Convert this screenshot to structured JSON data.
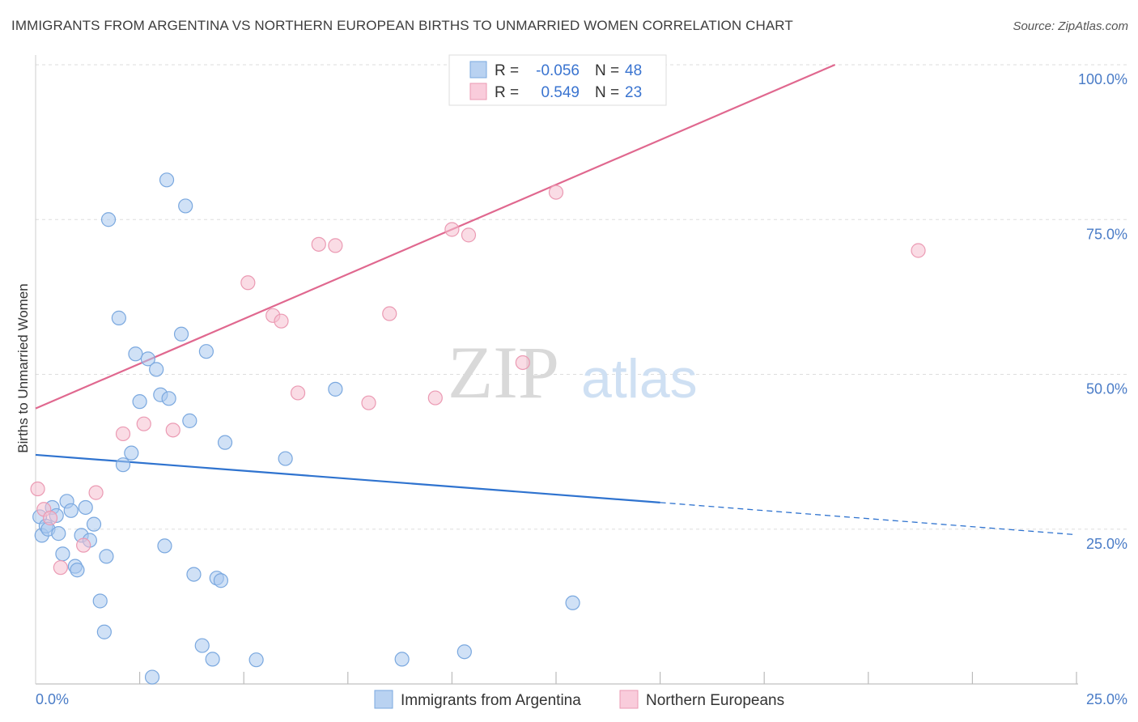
{
  "title": "IMMIGRANTS FROM ARGENTINA VS NORTHERN EUROPEAN BIRTHS TO UNMARRIED WOMEN CORRELATION CHART",
  "source": "Source: ZipAtlas.com",
  "watermark": {
    "zip": "ZIP",
    "atlas": "atlas"
  },
  "colors": {
    "blue_fill": "#a9c8ee",
    "blue_stroke": "#7aa8df",
    "blue_line": "#2f73cf",
    "pink_fill": "#f6bfd0",
    "pink_stroke": "#eb9ab3",
    "pink_line": "#e0688f",
    "grid": "#dddddd",
    "tick_label": "#4a7cc7"
  },
  "legend": {
    "rows": [
      {
        "r_label": "R =",
        "r_value": "-0.056",
        "n_label": "N =",
        "n_value": "48",
        "color": "blue"
      },
      {
        "r_label": "R =",
        "r_value": "0.549",
        "n_label": "N =",
        "n_value": "23",
        "color": "pink"
      }
    ]
  },
  "chart_data": {
    "type": "scatter",
    "xlabel": "",
    "ylabel": "Births to Unmarried Women",
    "xlim": [
      0,
      25
    ],
    "ylim": [
      0,
      100
    ],
    "x_tick_labels": [
      {
        "value": 0,
        "label": "0.0%"
      },
      {
        "value": 25,
        "label": "25.0%"
      }
    ],
    "y_tick_labels": [
      {
        "value": 25,
        "label": "25.0%"
      },
      {
        "value": 50,
        "label": "50.0%"
      },
      {
        "value": 75,
        "label": "75.0%"
      },
      {
        "value": 100,
        "label": "100.0%"
      }
    ],
    "x_minor_ticks": [
      2.5,
      5,
      7.5,
      10,
      12.5,
      15,
      17.5,
      20,
      22.5,
      25
    ],
    "grid": true,
    "legend_position": "top-center",
    "series": [
      {
        "name": "Immigrants from Argentina",
        "color": "blue",
        "points": [
          [
            0.1,
            27.0
          ],
          [
            0.15,
            24.0
          ],
          [
            0.25,
            25.5
          ],
          [
            0.3,
            25.0
          ],
          [
            0.4,
            28.5
          ],
          [
            0.5,
            27.2
          ],
          [
            0.55,
            24.3
          ],
          [
            0.65,
            21.0
          ],
          [
            0.75,
            29.5
          ],
          [
            0.85,
            28.0
          ],
          [
            0.95,
            19.0
          ],
          [
            1.0,
            18.4
          ],
          [
            1.1,
            24.0
          ],
          [
            1.2,
            28.5
          ],
          [
            1.3,
            23.2
          ],
          [
            1.4,
            25.8
          ],
          [
            1.55,
            13.4
          ],
          [
            1.65,
            8.4
          ],
          [
            1.7,
            20.6
          ],
          [
            1.75,
            75.0
          ],
          [
            2.0,
            59.1
          ],
          [
            2.1,
            35.4
          ],
          [
            2.3,
            37.3
          ],
          [
            2.4,
            53.3
          ],
          [
            2.5,
            45.6
          ],
          [
            2.7,
            52.5
          ],
          [
            2.8,
            1.1
          ],
          [
            2.9,
            50.8
          ],
          [
            3.0,
            46.7
          ],
          [
            3.1,
            22.3
          ],
          [
            3.15,
            81.4
          ],
          [
            3.2,
            46.1
          ],
          [
            3.5,
            56.5
          ],
          [
            3.6,
            77.2
          ],
          [
            3.7,
            42.5
          ],
          [
            3.8,
            17.7
          ],
          [
            4.0,
            6.2
          ],
          [
            4.1,
            53.7
          ],
          [
            4.25,
            4.0
          ],
          [
            4.35,
            17.1
          ],
          [
            4.45,
            16.7
          ],
          [
            4.55,
            39.0
          ],
          [
            5.3,
            3.9
          ],
          [
            6.0,
            36.4
          ],
          [
            7.2,
            47.6
          ],
          [
            8.8,
            4.0
          ],
          [
            10.3,
            5.2
          ],
          [
            12.9,
            13.1
          ]
        ]
      },
      {
        "name": "Northern Europeans",
        "color": "pink",
        "points": [
          [
            0.05,
            31.5
          ],
          [
            0.2,
            28.2
          ],
          [
            0.35,
            26.8
          ],
          [
            0.6,
            18.8
          ],
          [
            1.15,
            22.4
          ],
          [
            1.45,
            30.9
          ],
          [
            2.1,
            40.4
          ],
          [
            2.6,
            42.0
          ],
          [
            3.3,
            41.0
          ],
          [
            5.1,
            64.8
          ],
          [
            5.7,
            59.5
          ],
          [
            5.9,
            58.6
          ],
          [
            6.3,
            47.0
          ],
          [
            6.8,
            71.0
          ],
          [
            7.2,
            70.8
          ],
          [
            8.0,
            45.4
          ],
          [
            8.5,
            59.8
          ],
          [
            9.6,
            46.2
          ],
          [
            10.0,
            73.4
          ],
          [
            10.4,
            72.5
          ],
          [
            11.7,
            51.9
          ],
          [
            12.5,
            79.4
          ],
          [
            21.2,
            70.0
          ]
        ]
      }
    ],
    "trend_lines": [
      {
        "series": "Immigrants from Argentina",
        "x0": 0,
        "y0": 37.0,
        "x1": 15.0,
        "y1": 29.3,
        "dashed_to_x": 25,
        "dashed_to_y": 24.1
      },
      {
        "series": "Northern Europeans",
        "x0": 0,
        "y0": 44.5,
        "x1": 19.2,
        "y1": 100
      }
    ]
  }
}
